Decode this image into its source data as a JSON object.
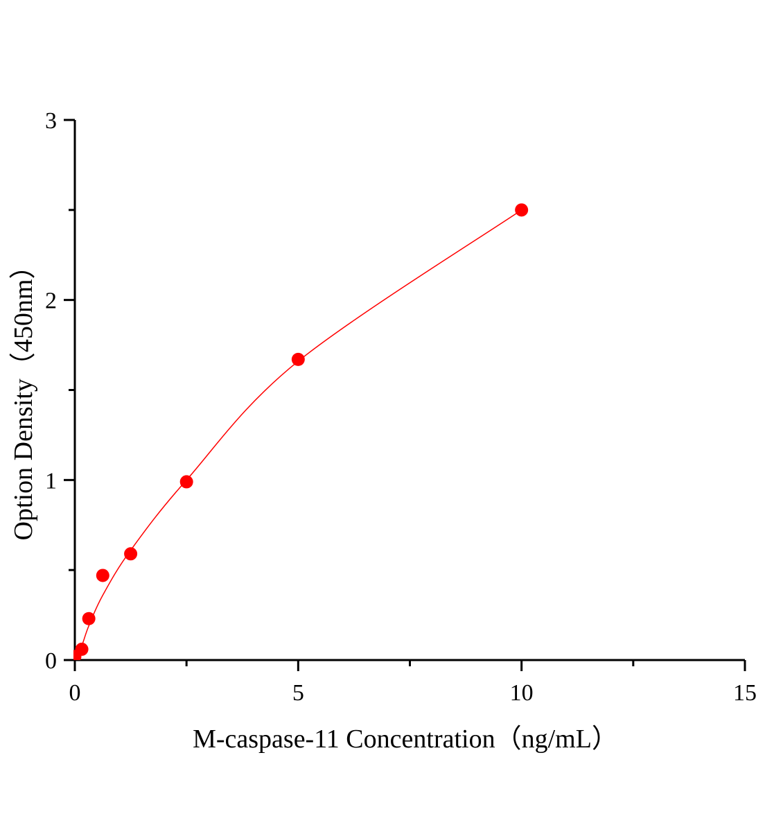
{
  "chart_data": {
    "type": "scatter",
    "title": "",
    "xlabel": "M-caspase-11 Concentration（ng/mL）",
    "ylabel": "Option Density（450nm）",
    "xlim": [
      0,
      15
    ],
    "ylim": [
      0,
      3
    ],
    "xticks": [
      0,
      5,
      10,
      15
    ],
    "yticks": [
      0,
      1,
      2,
      3
    ],
    "x_minor_step": 2.5,
    "y_minor_step": 0.5,
    "grid": false,
    "points": [
      {
        "x": 0,
        "y": 0.02
      },
      {
        "x": 0.156,
        "y": 0.06
      },
      {
        "x": 0.3125,
        "y": 0.23
      },
      {
        "x": 0.625,
        "y": 0.47
      },
      {
        "x": 1.25,
        "y": 0.59
      },
      {
        "x": 2.5,
        "y": 0.99
      },
      {
        "x": 5,
        "y": 1.67
      },
      {
        "x": 10,
        "y": 2.5
      }
    ],
    "fit_curve": [
      [
        0,
        0
      ],
      [
        0.156,
        0.08
      ],
      [
        0.3125,
        0.19
      ],
      [
        0.625,
        0.36
      ],
      [
        1.25,
        0.61
      ],
      [
        2.5,
        1.0
      ],
      [
        5,
        1.66
      ],
      [
        10,
        2.5
      ]
    ],
    "colors": {
      "points": "#ff0000",
      "curve": "#ff0000",
      "axes": "#000000"
    }
  }
}
